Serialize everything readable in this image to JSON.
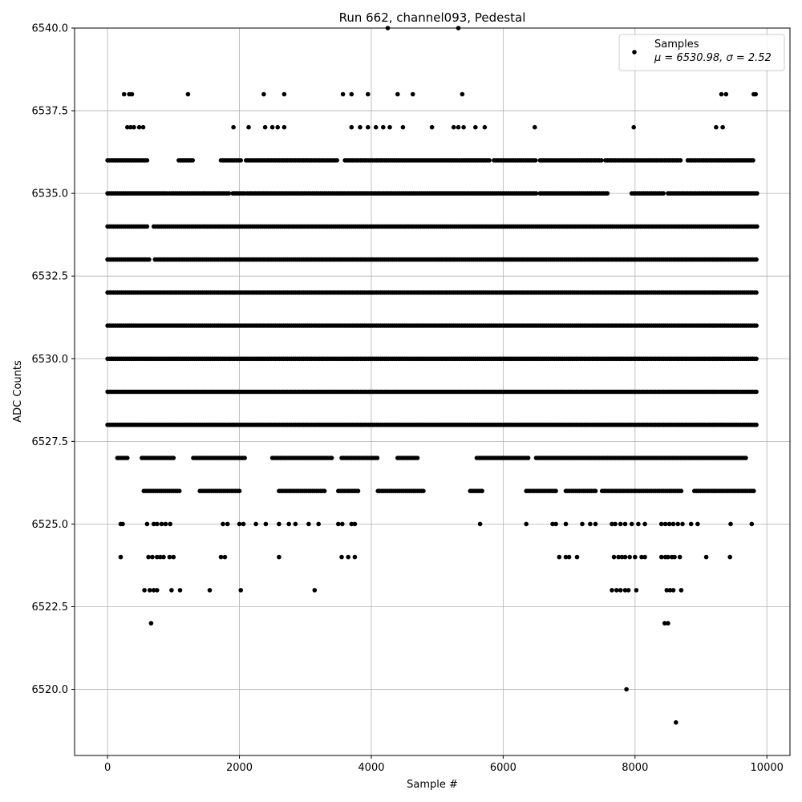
{
  "chart_data": {
    "type": "scatter",
    "title": "Run 662, channel093, Pedestal",
    "xlabel": "Sample #",
    "ylabel": "ADC Counts",
    "xlim": [
      -500,
      10350
    ],
    "ylim": [
      6518,
      6540
    ],
    "xticks": [
      0,
      2000,
      4000,
      6000,
      8000,
      10000
    ],
    "yticks": [
      6520.0,
      6522.5,
      6525.0,
      6527.5,
      6530.0,
      6532.5,
      6535.0,
      6537.5,
      6540.0
    ],
    "grid": true,
    "legend": {
      "placement": "top-right",
      "entry": "Samples",
      "stats": "μ = 6530.98, σ = 2.52"
    },
    "series": [
      {
        "name": "Samples",
        "color": "#000000",
        "n_samples": 9850,
        "levels": [
          {
            "y": 6540,
            "x": [
              4250,
              5320
            ]
          },
          {
            "y": 6538,
            "x": [
              250,
              330,
              370,
              1220,
              2370,
              2680,
              3570,
              3700,
              3950,
              4400,
              4630,
              5380,
              9310,
              9380,
              9800,
              9830
            ]
          },
          {
            "y": 6537,
            "x": [
              300,
              350,
              400,
              480,
              540,
              1910,
              2140,
              2390,
              2500,
              2580,
              2680,
              3700,
              3830,
              3950,
              4070,
              4180,
              4280,
              4480,
              4920,
              5250,
              5320,
              5400,
              5580,
              5720,
              6480,
              7980,
              9230,
              9330
            ]
          },
          {
            "y": 6536,
            "x": [
              [
                0,
                600
              ],
              [
                1080,
                1300
              ],
              [
                1720,
                2040
              ],
              [
                2100,
                3500
              ],
              [
                3600,
                5800
              ],
              [
                5860,
                6500
              ],
              [
                6560,
                7500
              ],
              [
                7550,
                8700
              ],
              [
                8800,
                9800
              ]
            ]
          },
          {
            "y": 6535,
            "x": [
              [
                0,
                900
              ],
              [
                940,
                1850
              ],
              [
                1900,
                2100
              ],
              [
                2120,
                4500
              ],
              [
                4520,
                6500
              ],
              [
                6560,
                7600
              ],
              [
                7950,
                8450
              ],
              [
                8500,
                9850
              ]
            ]
          },
          {
            "y": 6534,
            "x": [
              [
                0,
                600
              ],
              [
                700,
                9850
              ]
            ]
          },
          {
            "y": 6533,
            "x": [
              [
                0,
                650
              ],
              [
                720,
                9850
              ]
            ]
          },
          {
            "y": 6532,
            "x": [
              [
                0,
                1000
              ],
              [
                1020,
                9850
              ]
            ]
          },
          {
            "y": 6531,
            "x": [
              [
                0,
                9850
              ]
            ]
          },
          {
            "y": 6530,
            "x": [
              [
                0,
                9850
              ]
            ]
          },
          {
            "y": 6529,
            "x": [
              [
                0,
                9850
              ]
            ]
          },
          {
            "y": 6528,
            "x": [
              [
                0,
                9850
              ]
            ]
          },
          {
            "y": 6527,
            "x": [
              [
                150,
                300
              ],
              [
                520,
                1000
              ],
              [
                1300,
                2100
              ],
              [
                2500,
                3400
              ],
              [
                3550,
                4100
              ],
              [
                4400,
                4700
              ],
              [
                5600,
                6400
              ],
              [
                6500,
                9700
              ]
            ]
          },
          {
            "y": 6526,
            "x": [
              [
                550,
                1100
              ],
              [
                1400,
                2000
              ],
              [
                2600,
                3300
              ],
              [
                3500,
                3800
              ],
              [
                4100,
                4800
              ],
              [
                5500,
                5700
              ],
              [
                6350,
                6800
              ],
              [
                6950,
                7400
              ],
              [
                7500,
                8700
              ],
              [
                8900,
                9800
              ]
            ]
          },
          {
            "y": 6525,
            "x": [
              200,
              230,
              600,
              700,
              750,
              820,
              880,
              950,
              1750,
              1820,
              2000,
              2060,
              2250,
              2400,
              2600,
              2750,
              2850,
              3050,
              3200,
              3500,
              3560,
              3700,
              3750,
              5650,
              6350,
              6750,
              6800,
              6950,
              7200,
              7320,
              7400,
              7650,
              7700,
              7780,
              7850,
              7950,
              8050,
              8150,
              8400,
              8460,
              8520,
              8580,
              8650,
              8720,
              8850,
              8950,
              9450,
              9770
            ]
          },
          {
            "y": 6524,
            "x": [
              200,
              620,
              680,
              750,
              800,
              850,
              940,
              1000,
              1720,
              1780,
              2600,
              3550,
              3650,
              3750,
              6850,
              6950,
              7000,
              7120,
              7680,
              7750,
              7800,
              7850,
              7920,
              8000,
              8100,
              8150,
              8400,
              8460,
              8500,
              8560,
              8600,
              8680,
              9080,
              9440
            ]
          },
          {
            "y": 6523,
            "x": [
              560,
              640,
              700,
              750,
              970,
              1100,
              1550,
              2020,
              3140,
              7650,
              7720,
              7780,
              7850,
              7900,
              8020,
              8480,
              8530,
              8580,
              8700
            ]
          },
          {
            "y": 6522,
            "x": [
              660,
              8450,
              8500
            ]
          },
          {
            "y": 6520,
            "x": [
              7870
            ]
          },
          {
            "y": 6519,
            "x": [
              8620
            ]
          }
        ]
      }
    ]
  }
}
